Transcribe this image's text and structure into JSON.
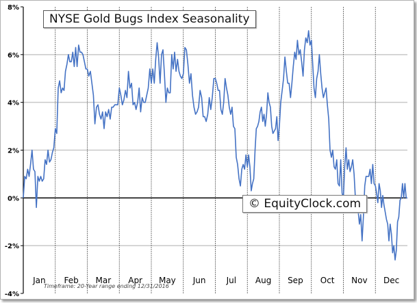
{
  "chart_data": {
    "type": "line",
    "title": "NYSE Gold Bugs Index Seasonality",
    "watermark": "© EquityClock.com",
    "footnote": "Timeframe: 20-Year range ending 12/31/2016",
    "ylim": [
      -4,
      8
    ],
    "yticks": [
      "8%",
      "6%",
      "4%",
      "2%",
      "0%",
      "-2%",
      "-4%"
    ],
    "ytick_values": [
      8,
      6,
      4,
      2,
      0,
      -2,
      -4
    ],
    "grid": true,
    "line_color": "#4472c4",
    "months": [
      "Jan",
      "Feb",
      "Mar",
      "Apr",
      "May",
      "Jun",
      "Jul",
      "Aug",
      "Sep",
      "Oct",
      "Nov",
      "Dec"
    ],
    "series_by_month": [
      [
        0,
        0.9,
        0.8,
        1.2,
        0.9,
        1.4,
        2.0,
        1.2,
        1.1,
        -0.4,
        0.9,
        0.7,
        0.9,
        0.7,
        0.8,
        1.6,
        1.4,
        2.0,
        1.5,
        1.6,
        1.9,
        2.1
      ],
      [
        2.9,
        2.7,
        4.6,
        4.9,
        4.4,
        4.6,
        4.5,
        5.3,
        5.6,
        6.0,
        5.7,
        5.7,
        6.1,
        5.5,
        6.3,
        5.5,
        6.4,
        6.1,
        6.1,
        6.0,
        5.7,
        5.4
      ],
      [
        5.4,
        5.1,
        5.3,
        4.8,
        4.3,
        3.1,
        3.8,
        3.9,
        3.5,
        3.3,
        3.6,
        2.9,
        3.6,
        3.4,
        3.7,
        3.3,
        3.8,
        3.8,
        3.9,
        3.9,
        3.9
      ],
      [
        4.6,
        4.3,
        3.9,
        4.1,
        4.5,
        4.2,
        5.3,
        4.6,
        4.8,
        3.9,
        4.0,
        3.7,
        4.0,
        4.6,
        3.6,
        4.2,
        4.0,
        4.0,
        4.3,
        4.6,
        5.4
      ],
      [
        4.8,
        5.4,
        4.8,
        5.8,
        6.5,
        5.9,
        4.8,
        6.0,
        6.2,
        5.2,
        4.0,
        4.6,
        4.4,
        4.4,
        6.0,
        5.4,
        6.1,
        5.3,
        5.8,
        5.3,
        5.1,
        5.0
      ],
      [
        5.2,
        6.3,
        6.2,
        5.6,
        4.8,
        5.2,
        4.3,
        3.8,
        3.5,
        3.6,
        3.8,
        4.5,
        4.2,
        3.4,
        3.4,
        3.2,
        3.5,
        4.2,
        3.7,
        4.2,
        5.0
      ],
      [
        5.0,
        4.8,
        4.5,
        4.5,
        3.7,
        3.5,
        4.0,
        5.0,
        4.6,
        4.3,
        3.8,
        3.5,
        3.8,
        3.0,
        2.9,
        1.7,
        1.4,
        0.8,
        0.5,
        1.2,
        1.4,
        1.2,
        1.8
      ],
      [
        1.3,
        1.8,
        1.3,
        0.3,
        0.6,
        0.8,
        2.0,
        2.9,
        3.0,
        3.2,
        3.6,
        3.8,
        3.2,
        3.5,
        3.0,
        3.5,
        4.4,
        4.0,
        3.8,
        3.0,
        2.7,
        2.8,
        2.9,
        3.4,
        2.4
      ],
      [
        3.0,
        4.0,
        4.5,
        5.0,
        5.9,
        5.3,
        4.8,
        4.8,
        4.2,
        4.8,
        5.5,
        6.1,
        5.8,
        6.6,
        6.0,
        6.2,
        5.7,
        5.1,
        6.2,
        6.7,
        6.5,
        7.0,
        6.4
      ],
      [
        6.6,
        5.6,
        4.6,
        4.2,
        5.0,
        5.3,
        6.0,
        5.2,
        4.6,
        4.2,
        4.4,
        4.6,
        3.9,
        3.3,
        2.0,
        1.7,
        2.0,
        1.3,
        1.2,
        1.6,
        0.6,
        0.5,
        1.6,
        0.2
      ],
      [
        0.0,
        1.3,
        2.1,
        1.2,
        1.6,
        1.1,
        1.3,
        1.6,
        1.0,
        0.0,
        -0.4,
        -0.5,
        -1.1,
        -0.7,
        -1.8,
        -0.8,
        0.5,
        0.9,
        0.9,
        0.9,
        1.2,
        0.6,
        1.4,
        0.6
      ],
      [
        0.5,
        0.2,
        -0.2,
        0.6,
        0.3,
        -0.4,
        0.1,
        -0.3,
        -0.6,
        -0.9,
        -1.1,
        -1.8,
        -1.1,
        -1.5,
        -2.3,
        -2.0,
        -2.6,
        -2.2,
        -1.0,
        -0.8,
        -0.1,
        0.0,
        0.6,
        0.0,
        0.6,
        0.0
      ]
    ]
  }
}
